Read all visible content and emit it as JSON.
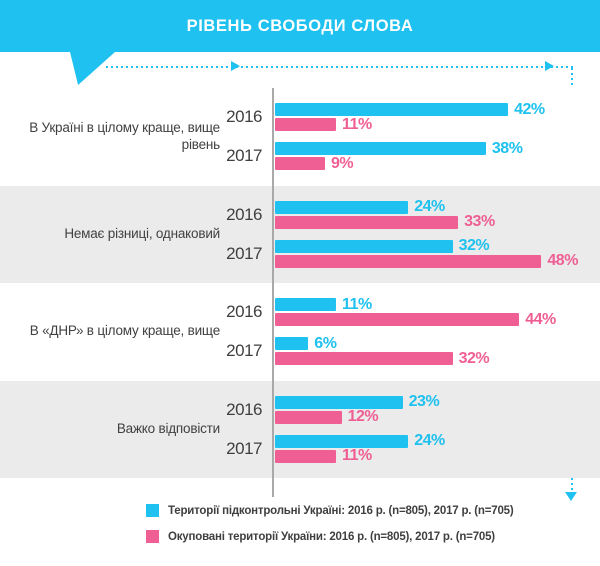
{
  "header": {
    "title": "РІВЕНЬ СВОБОДИ СЛОВА"
  },
  "colors": {
    "cyan": "#1EC1EF",
    "pink": "#EF5F94",
    "band_gray": "#EBEBEB",
    "axis_gray": "#A9A9A9",
    "text_dark": "#414042"
  },
  "chart_data": {
    "type": "bar",
    "orientation": "horizontal",
    "title": "РІВЕНЬ СВОБОДИ СЛОВА",
    "value_unit": "%",
    "xlim": [
      0,
      54
    ],
    "grid": false,
    "legend_position": "bottom",
    "series_names": [
      "Території підконтрольні Україні",
      "Окуповані території України"
    ],
    "series_colors": [
      "#1EC1EF",
      "#EF5F94"
    ],
    "groups": [
      {
        "category": "В Україні в цілому краще, вище рівень",
        "rows": [
          {
            "year": "2016",
            "values": [
              42,
              11
            ]
          },
          {
            "year": "2017",
            "values": [
              38,
              9
            ]
          }
        ]
      },
      {
        "category": "Немає різниці, однаковий",
        "rows": [
          {
            "year": "2016",
            "values": [
              24,
              33
            ]
          },
          {
            "year": "2017",
            "values": [
              32,
              48
            ]
          }
        ]
      },
      {
        "category": "В «ДНР» в цілому краще, вище",
        "rows": [
          {
            "year": "2016",
            "values": [
              11,
              44
            ]
          },
          {
            "year": "2017",
            "values": [
              6,
              32
            ]
          }
        ]
      },
      {
        "category": "Важко відповісти",
        "rows": [
          {
            "year": "2016",
            "values": [
              23,
              12
            ]
          },
          {
            "year": "2017",
            "values": [
              24,
              11
            ]
          }
        ]
      }
    ],
    "legend": [
      {
        "swatch": "cyan",
        "label": "Території підконтрольні Україні:  2016 р. (n=805), 2017 р. (n=705)"
      },
      {
        "swatch": "pink",
        "label": "Окуповані території України: 2016 р. (n=805), 2017 р. (n=705)"
      }
    ]
  }
}
